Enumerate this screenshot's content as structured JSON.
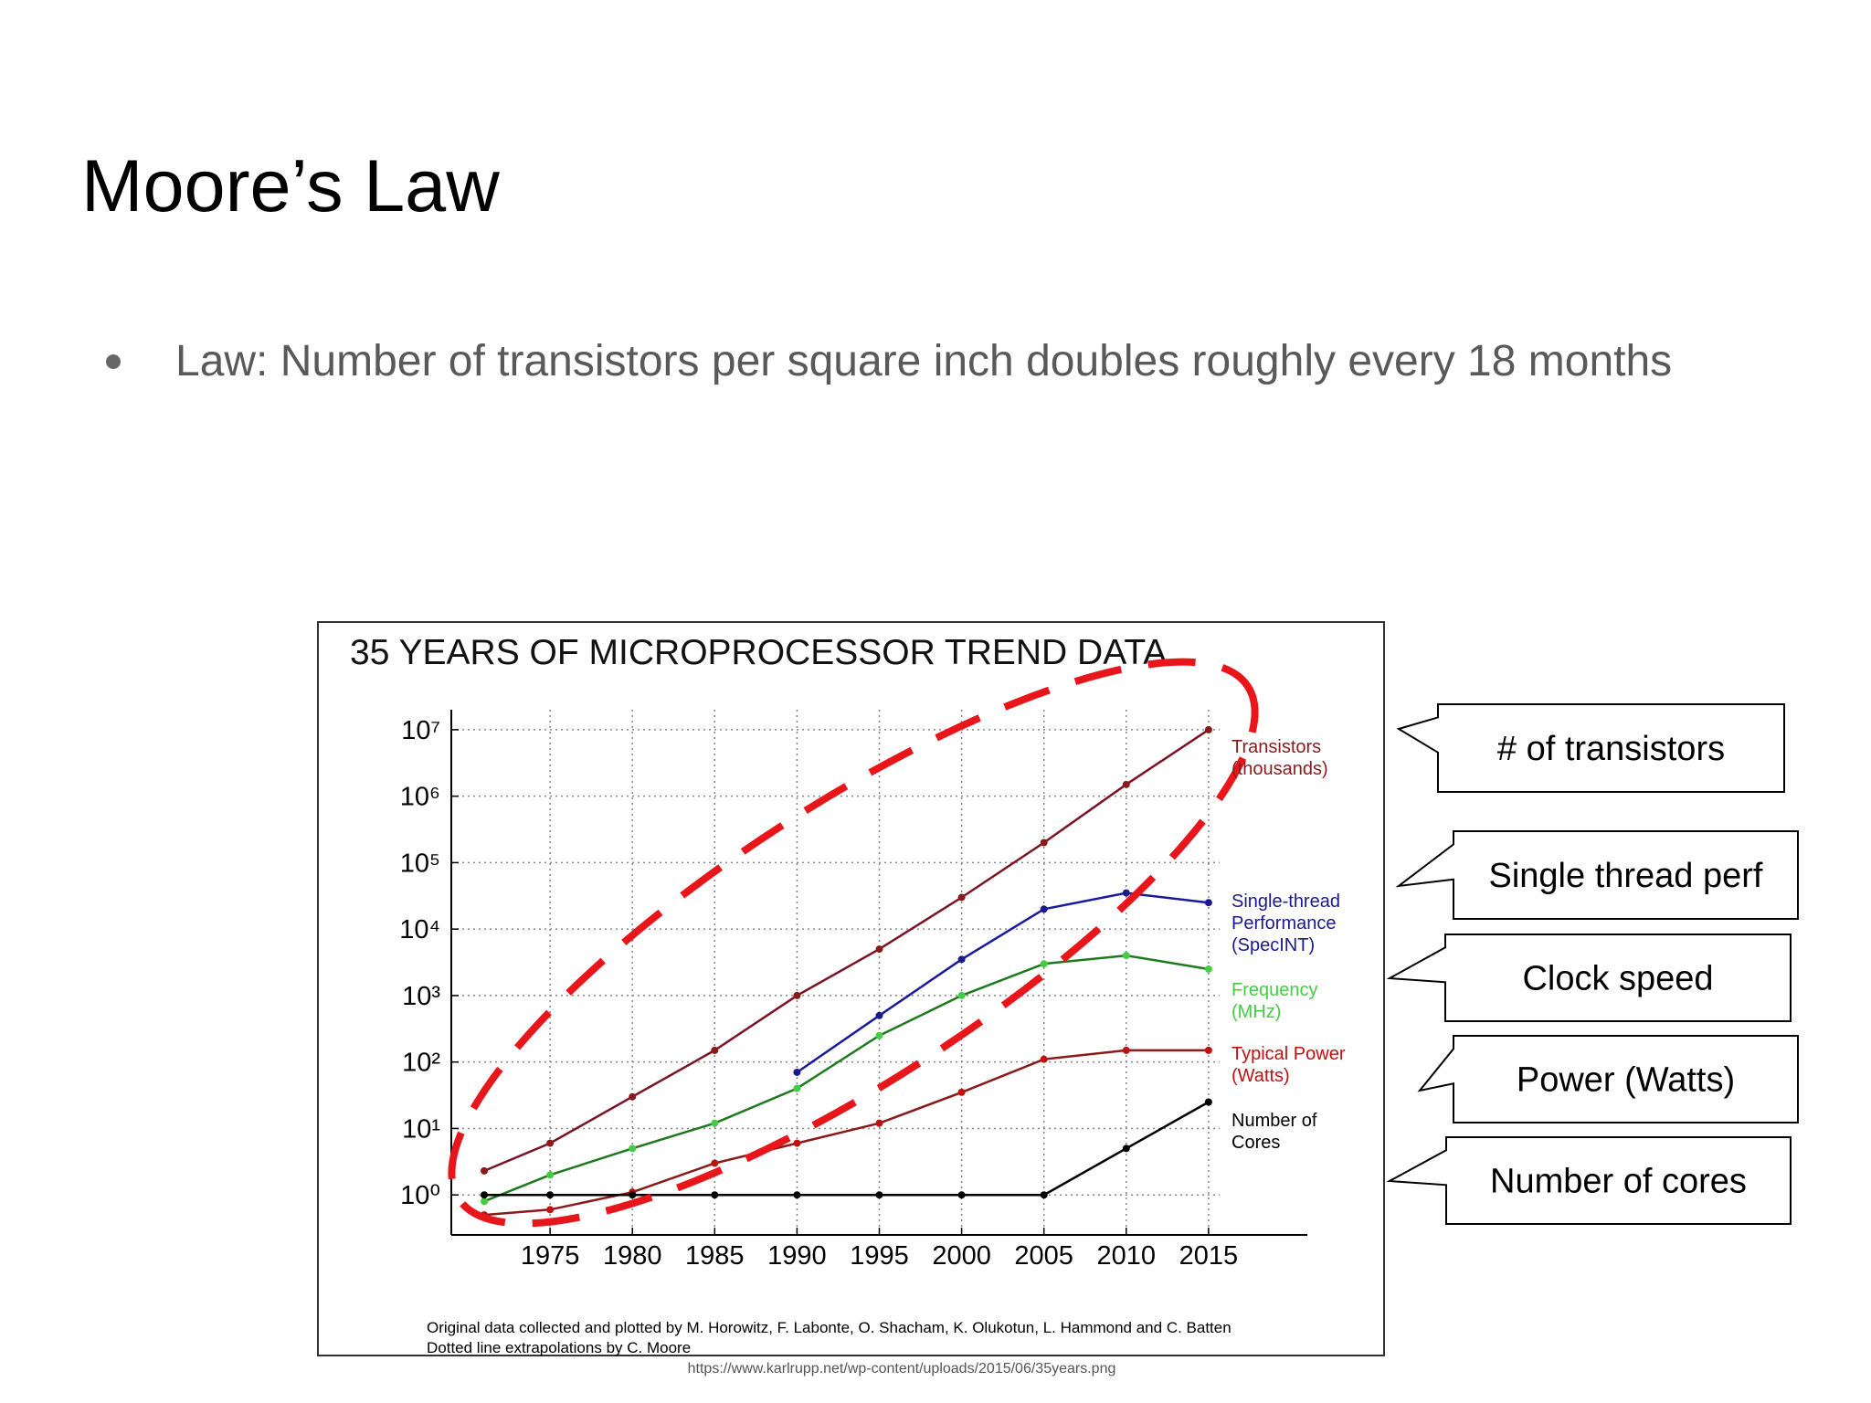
{
  "slide": {
    "title": "Moore’s Law",
    "bullets": [
      "Law: Number of transistors per square inch doubles roughly every 18 months"
    ],
    "callouts": [
      "# of transistors",
      "Single thread perf",
      "Clock speed",
      "Power (Watts)",
      "Number of cores"
    ],
    "source": "https://www.karlrupp.net/wp-content/uploads/2015/06/35years.png"
  },
  "chart_data": {
    "type": "line",
    "title": "35 YEARS OF MICROPROCESSOR TREND DATA",
    "x": [
      1971,
      1975,
      1980,
      1985,
      1990,
      1995,
      2000,
      2005,
      2010,
      2015
    ],
    "series": [
      {
        "name": "Transistors (thousands)",
        "color": "#7a1424",
        "label_color": "#8b1a1a",
        "values": [
          2.3,
          6,
          30,
          150,
          1000,
          5000,
          30000,
          200000,
          1500000,
          10000000
        ]
      },
      {
        "name": "Single-thread Performance (SpecINT)",
        "color": "#1a1a9c",
        "label_color": "#1a1a8c",
        "values": [
          null,
          null,
          null,
          null,
          70,
          500,
          3500,
          20000,
          35000,
          25000
        ]
      },
      {
        "name": "Frequency (MHz)",
        "color": "#1f7a1f",
        "label_color": "#44cc44",
        "values": [
          0.8,
          2,
          5,
          12,
          40,
          250,
          1000,
          3000,
          4000,
          2500
        ]
      },
      {
        "name": "Typical Power (Watts)",
        "color": "#8b1a1a",
        "label_color": "#c01010",
        "values": [
          0.5,
          0.6,
          1.1,
          3,
          6,
          12,
          35,
          110,
          150,
          150
        ]
      },
      {
        "name": "Number of Cores",
        "color": "#000000",
        "label_color": "#000000",
        "values": [
          1,
          1,
          1,
          1,
          1,
          1,
          1,
          1,
          5,
          25
        ]
      }
    ],
    "xlim": [
      1969,
      2021
    ],
    "xticks": [
      1975,
      1980,
      1985,
      1990,
      1995,
      2000,
      2005,
      2010,
      2015
    ],
    "ylim": [
      0.25,
      20000000
    ],
    "log_scale": true,
    "grid": true,
    "yticks": [
      {
        "value": 1,
        "label": "10⁰"
      },
      {
        "value": 10,
        "label": "10¹"
      },
      {
        "value": 100,
        "label": "10²"
      },
      {
        "value": 1000,
        "label": "10³"
      },
      {
        "value": 10000,
        "label": "10⁴"
      },
      {
        "value": 100000,
        "label": "10⁵"
      },
      {
        "value": 1000000,
        "label": "10⁶"
      },
      {
        "value": 10000000,
        "label": "10⁷"
      }
    ],
    "footnotes": [
      "Original data collected and plotted by M. Horowitz, F. Labonte, O. Shacham, K. Olukotun, L. Hammond and C. Batten",
      "Dotted line extrapolations by C. Moore"
    ]
  }
}
